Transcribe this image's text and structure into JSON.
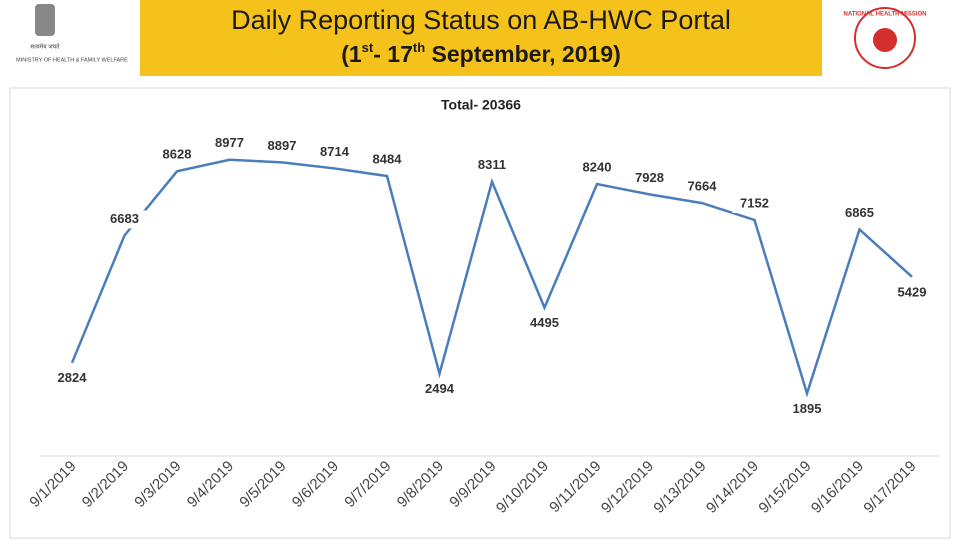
{
  "header": {
    "title": "Daily Reporting Status on AB-HWC Portal",
    "subtitle": [
      "(1",
      "st",
      "- 17",
      "th",
      " September, 2019)"
    ],
    "left_logo": {
      "motto": "सत्यमेव जयते",
      "ministry": "MINISTRY OF HEALTH & FAMILY WELFARE"
    },
    "right_logo": {
      "name": "NATIONAL HEALTH MISSION"
    }
  },
  "chart_data": {
    "type": "line",
    "title": "Total- 20366",
    "categories": [
      "9/1/2019",
      "9/2/2019",
      "9/3/2019",
      "9/4/2019",
      "9/5/2019",
      "9/6/2019",
      "9/7/2019",
      "9/8/2019",
      "9/9/2019",
      "9/10/2019",
      "9/11/2019",
      "9/12/2019",
      "9/13/2019",
      "9/14/2019",
      "9/15/2019",
      "9/16/2019",
      "9/17/2019"
    ],
    "values": [
      2824,
      6683,
      8628,
      8977,
      8897,
      8714,
      8484,
      2494,
      8311,
      4495,
      8240,
      7928,
      7664,
      7152,
      1895,
      6865,
      5429
    ],
    "color": "#4a7ebb",
    "ylim": [
      0,
      10000
    ]
  }
}
